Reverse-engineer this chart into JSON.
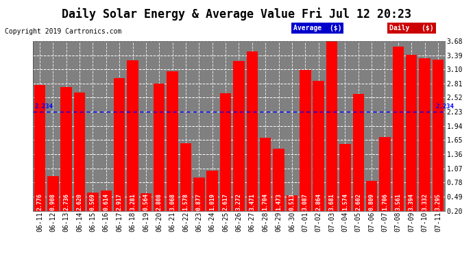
{
  "title": "Daily Solar Energy & Average Value Fri Jul 12 20:23",
  "copyright": "Copyright 2019 Cartronics.com",
  "categories": [
    "06-11",
    "06-12",
    "06-13",
    "06-14",
    "06-15",
    "06-16",
    "06-17",
    "06-18",
    "06-19",
    "06-20",
    "06-21",
    "06-22",
    "06-23",
    "06-24",
    "06-25",
    "06-26",
    "06-27",
    "06-28",
    "06-29",
    "06-30",
    "07-01",
    "07-02",
    "07-03",
    "07-04",
    "07-05",
    "07-06",
    "07-07",
    "07-08",
    "07-09",
    "07-10",
    "07-11"
  ],
  "values": [
    2.776,
    0.908,
    2.736,
    2.62,
    0.569,
    0.614,
    2.917,
    3.281,
    0.564,
    2.808,
    3.068,
    1.578,
    0.877,
    1.019,
    2.617,
    3.272,
    3.471,
    1.704,
    1.473,
    0.513,
    3.087,
    2.864,
    3.681,
    1.574,
    2.602,
    0.809,
    1.706,
    3.561,
    3.394,
    3.332,
    3.295
  ],
  "average": 2.234,
  "average_label": "2.234",
  "ylim": [
    0.2,
    3.68
  ],
  "yticks": [
    0.2,
    0.49,
    0.78,
    1.07,
    1.36,
    1.65,
    1.94,
    2.23,
    2.52,
    2.81,
    3.1,
    3.39,
    3.68
  ],
  "bar_color": "#FF0000",
  "avg_line_color": "#0000FF",
  "background_color": "#FFFFFF",
  "plot_bg_color": "#808080",
  "legend_avg_bg": "#0000CC",
  "legend_daily_bg": "#CC0000",
  "title_fontsize": 12,
  "tick_fontsize": 7,
  "label_fontsize": 6,
  "copyright_fontsize": 7
}
